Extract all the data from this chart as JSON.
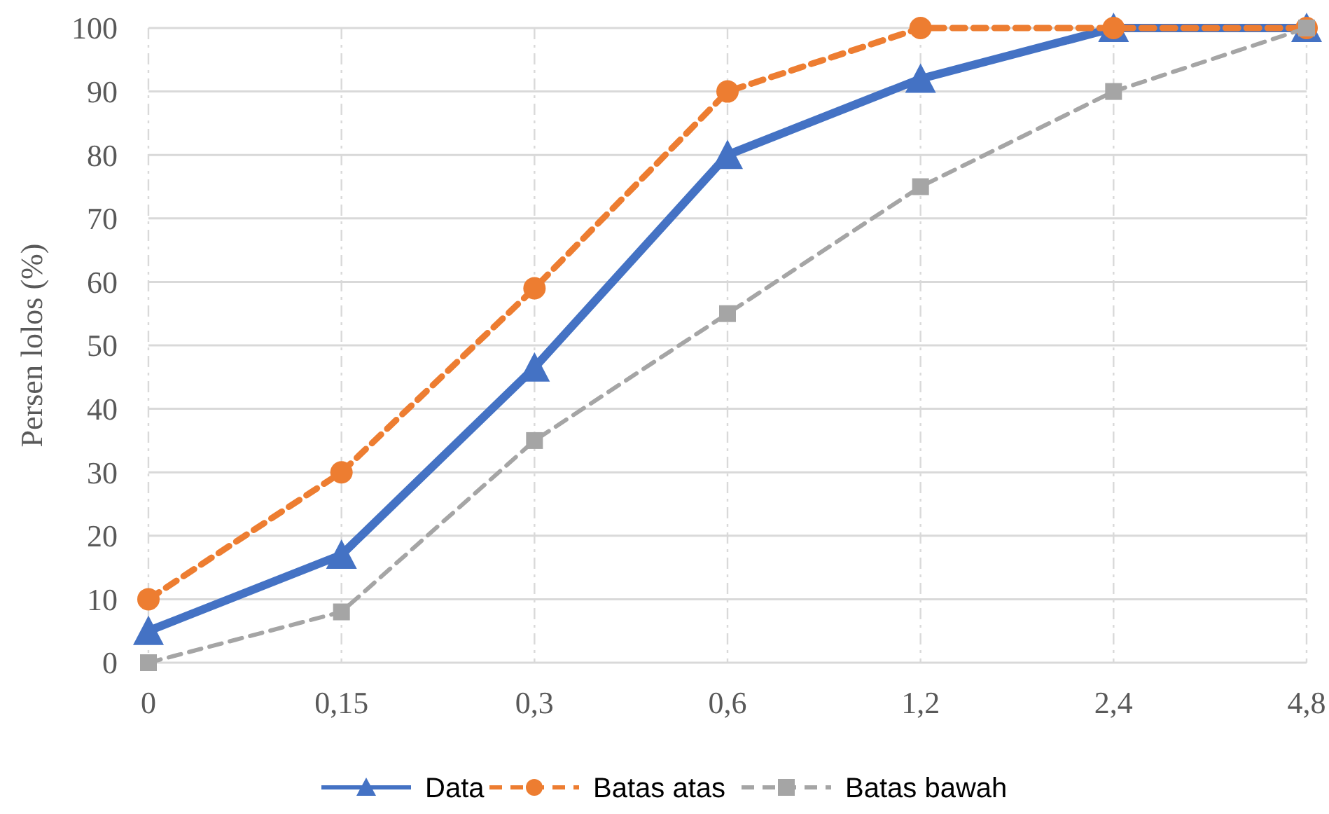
{
  "chart_data": {
    "type": "line",
    "ylabel": "Persen lolos (%)",
    "categories": [
      "0",
      "0,15",
      "0,3",
      "0,6",
      "1,2",
      "2,4",
      "4,8"
    ],
    "series": [
      {
        "name": "Data",
        "color": "#4472c4",
        "values": [
          5,
          17,
          46.5,
          80,
          92,
          100,
          100
        ],
        "marker": "triangle",
        "line_style": "solid"
      },
      {
        "name": "Batas atas",
        "color": "#ed7d31",
        "values": [
          10,
          30,
          59,
          90,
          100,
          100,
          100
        ],
        "marker": "circle",
        "line_style": "dashed"
      },
      {
        "name": "Batas bawah",
        "color": "#a5a5a5",
        "values": [
          0,
          8,
          35,
          55,
          75,
          90,
          100
        ],
        "marker": "square",
        "line_style": "dashed"
      }
    ],
    "ylim": [
      0,
      100
    ],
    "yticks": [
      0,
      10,
      20,
      30,
      40,
      50,
      60,
      70,
      80,
      90,
      100
    ],
    "grid": true,
    "legend": "bottom"
  }
}
